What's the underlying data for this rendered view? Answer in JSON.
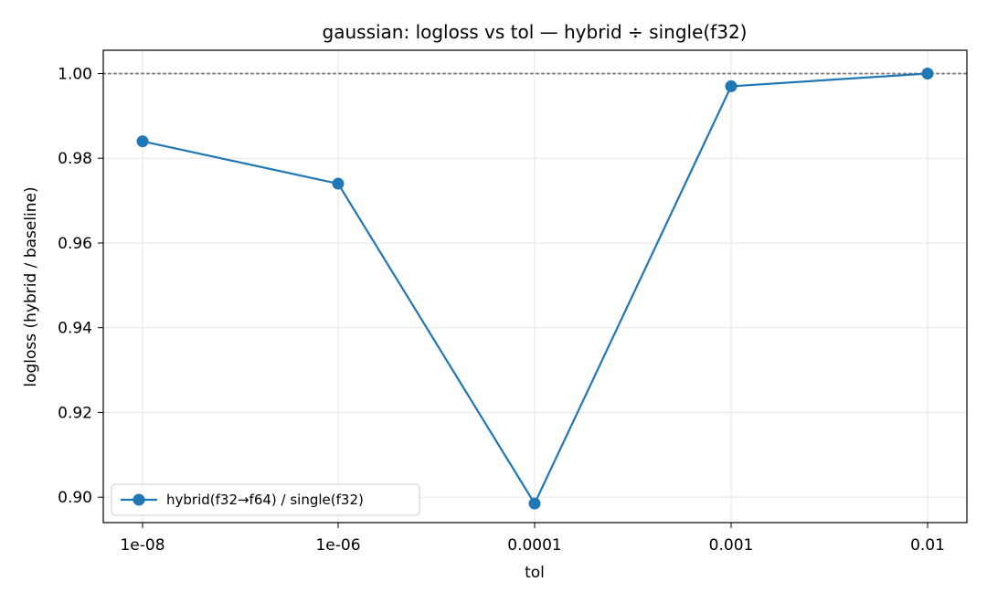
{
  "chart_data": {
    "type": "line",
    "title": "gaussian: logloss vs tol — hybrid ÷ single(f32)",
    "xlabel": "tol",
    "ylabel": "logloss (hybrid / baseline)",
    "categories": [
      "1e-08",
      "1e-06",
      "0.0001",
      "0.001",
      "0.01"
    ],
    "series": [
      {
        "name": "hybrid(f32→f64) / single(f32)",
        "values": [
          0.984,
          0.974,
          0.8985,
          0.997,
          1.0
        ],
        "color": "#1f77b4",
        "marker": "circle"
      }
    ],
    "reference_line": {
      "y": 1.0,
      "style": "dotted",
      "color": "#808080"
    },
    "yticks": [
      0.9,
      0.92,
      0.94,
      0.96,
      0.98,
      1.0
    ],
    "ytick_labels": [
      "0.90",
      "0.92",
      "0.94",
      "0.96",
      "0.98",
      "1.00"
    ],
    "ylim": [
      0.894,
      1.0055
    ],
    "grid": true,
    "legend_position": "lower-left"
  }
}
